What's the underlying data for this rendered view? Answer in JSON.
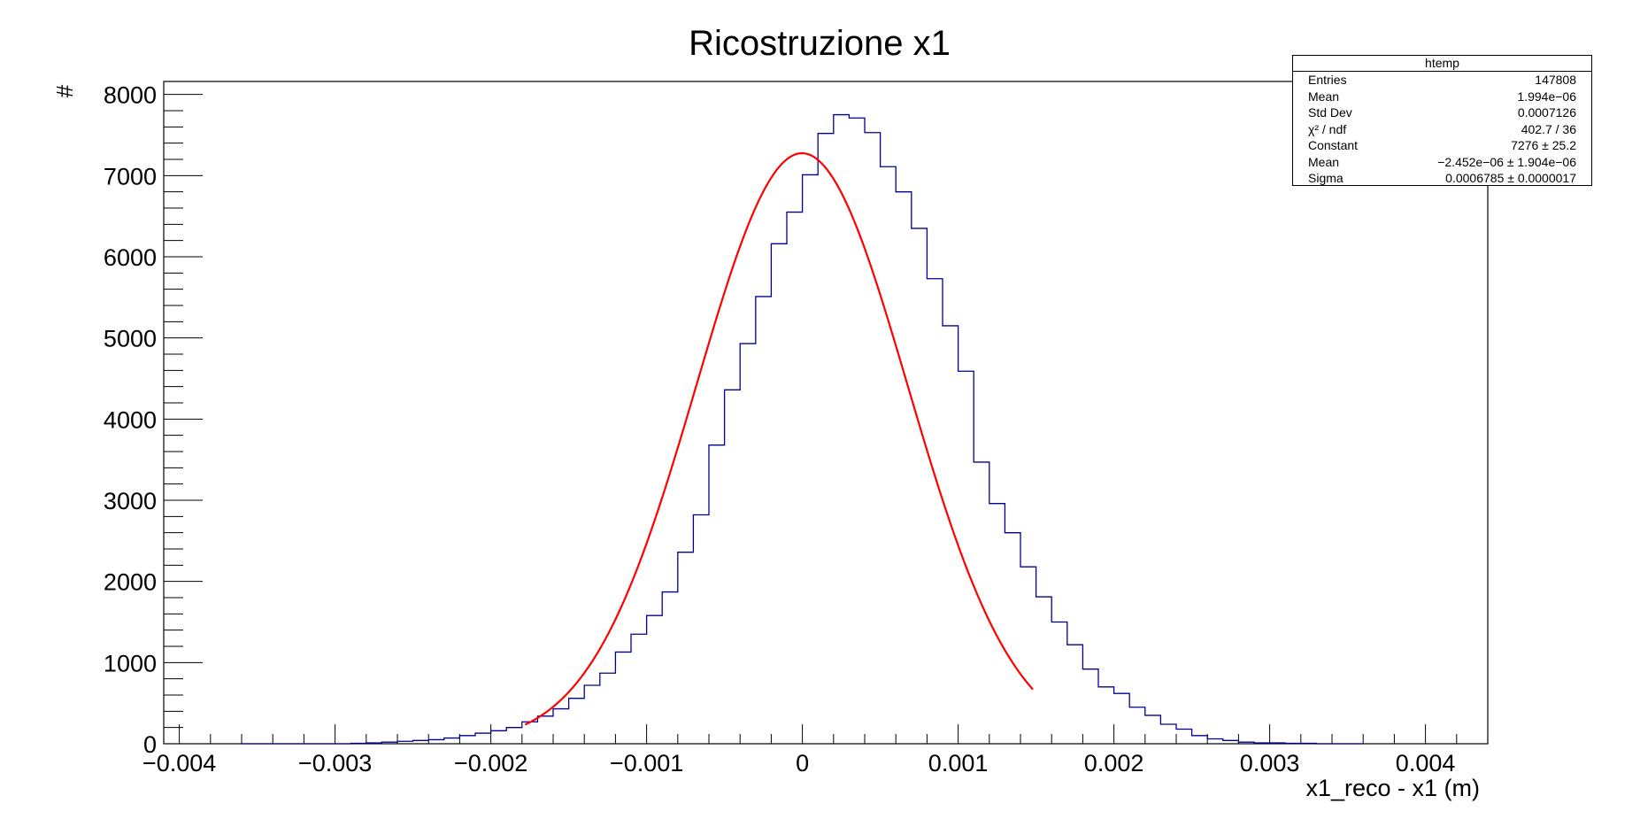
{
  "chart_data": {
    "type": "histogram",
    "title": "Ricostruzione x1",
    "xlabel": "x1_reco - x1 (m)",
    "ylabel": "#",
    "xlim": [
      -0.0041,
      0.0044
    ],
    "ylim": [
      0,
      8160
    ],
    "x_ticks": [
      -0.004,
      -0.003,
      -0.002,
      -0.001,
      0,
      0.001,
      0.002,
      0.003,
      0.004
    ],
    "x_tick_labels": [
      "−0.004",
      "−0.003",
      "−0.002",
      "−0.001",
      "0",
      "0.001",
      "0.002",
      "0.003",
      "0.004"
    ],
    "y_ticks": [
      0,
      1000,
      2000,
      3000,
      4000,
      5000,
      6000,
      7000,
      8000
    ],
    "y_tick_labels": [
      "0",
      "1000",
      "2000",
      "3000",
      "4000",
      "5000",
      "6000",
      "7000",
      "8000"
    ],
    "bin_width": 0.0001,
    "bin_low_edges": [
      -0.0036,
      -0.0035,
      -0.0034,
      -0.0033,
      -0.0032,
      -0.0031,
      -0.003,
      -0.0029,
      -0.0028,
      -0.0027,
      -0.0026,
      -0.0025,
      -0.0024,
      -0.0023,
      -0.0022,
      -0.0021,
      -0.002,
      -0.0019,
      -0.0018,
      -0.0017,
      -0.0016,
      -0.0015,
      -0.0014,
      -0.0013,
      -0.0012,
      -0.0011,
      -0.001,
      -0.0009,
      -0.0008,
      -0.0007,
      -0.0006,
      -0.0005,
      -0.0004,
      -0.0003,
      -0.0002,
      -0.0001,
      0,
      0.0001,
      0.0002,
      0.0003,
      0.0004,
      0.0005,
      0.0006,
      0.0007,
      0.0008,
      0.0009,
      0.001,
      0.0011,
      0.0012,
      0.0013,
      0.0014,
      0.0015,
      0.0016,
      0.0017,
      0.0018,
      0.0019,
      0.002,
      0.0021,
      0.0022,
      0.0023,
      0.0024,
      0.0025,
      0.0026,
      0.0027,
      0.0028,
      0.0029,
      0.003,
      0.0031,
      0.0032,
      0.0033,
      0.0034,
      0.0035
    ],
    "bin_counts": [
      0,
      0,
      0,
      0,
      0,
      0,
      0,
      5,
      10,
      20,
      30,
      40,
      50,
      70,
      100,
      130,
      160,
      200,
      270,
      340,
      430,
      560,
      720,
      870,
      1130,
      1350,
      1580,
      1870,
      2360,
      2820,
      3680,
      4360,
      4930,
      5510,
      6160,
      6550,
      7010,
      7520,
      7750,
      7710,
      7530,
      7110,
      6800,
      6350,
      5730,
      5150,
      4590,
      3470,
      2960,
      2600,
      2180,
      1810,
      1500,
      1220,
      920,
      700,
      620,
      450,
      350,
      240,
      180,
      100,
      60,
      40,
      20,
      10,
      10,
      5,
      5,
      0,
      0,
      0
    ],
    "fit": {
      "type": "gaus",
      "constant": 7276,
      "mean": -2.452e-06,
      "sigma": 0.0006785,
      "range": [
        -0.00178,
        0.00148
      ],
      "color": "#ff0000"
    },
    "histogram_color": "#000099",
    "stats_box": {
      "title": "htemp",
      "rows": [
        {
          "label": "Entries",
          "value": "147808"
        },
        {
          "label": "Mean",
          "value": "1.994e−06"
        },
        {
          "label": "Std Dev",
          "value": "0.0007126"
        },
        {
          "label": "χ² / ndf",
          "value": "402.7 / 36"
        },
        {
          "label": "Constant",
          "value": "7276 ± 25.2"
        },
        {
          "label": "Mean",
          "value": "−2.452e−06 ± 1.904e−06"
        },
        {
          "label": "Sigma",
          "value": "0.0006785 ± 0.0000017"
        }
      ]
    }
  }
}
